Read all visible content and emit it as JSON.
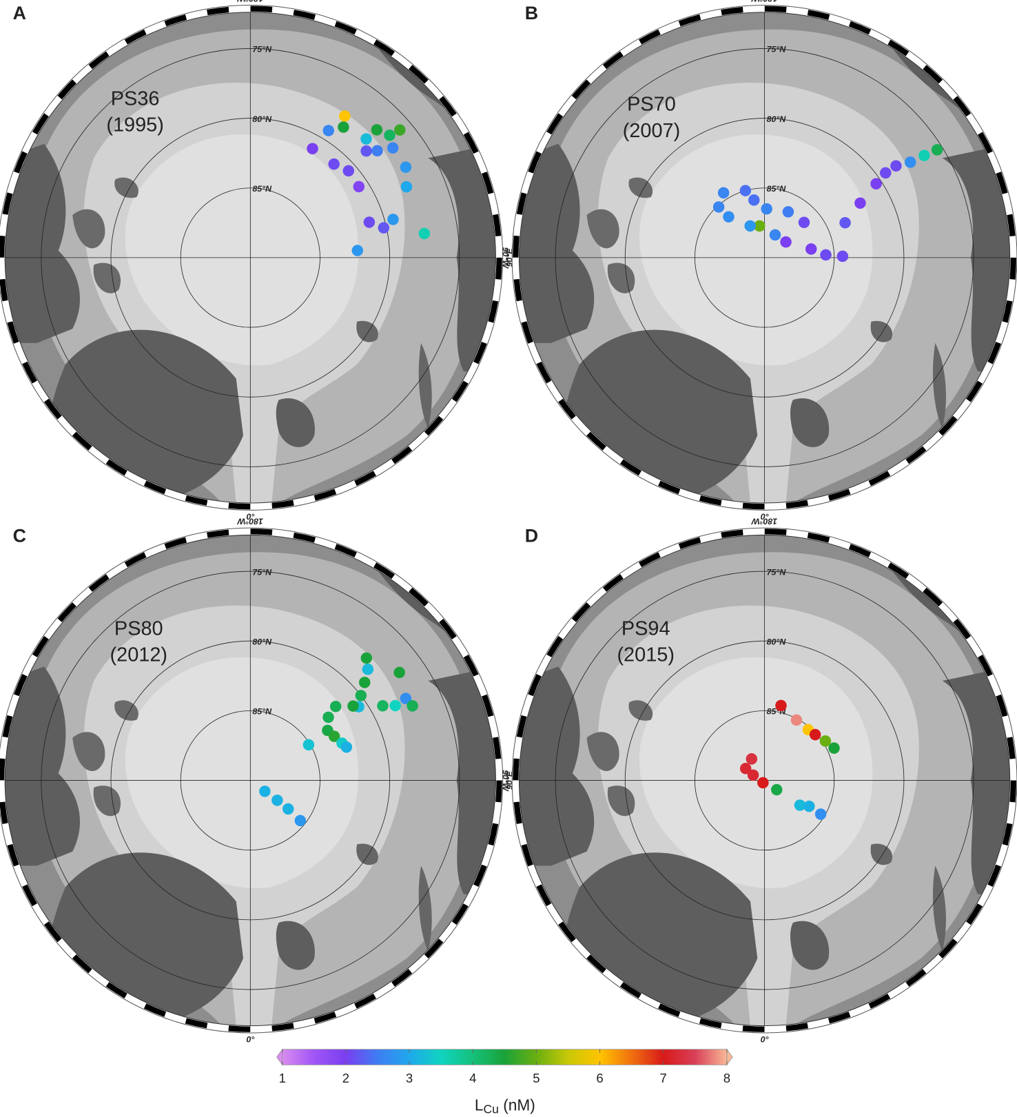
{
  "graticule": {
    "boundary_lat": 72.4,
    "lat_circles": [
      {
        "value": 75,
        "label": "75°N"
      },
      {
        "value": 80,
        "label": "80°N"
      },
      {
        "value": 85,
        "label": "85°N"
      }
    ],
    "meridians": [
      {
        "value": 180,
        "label": "180°W"
      },
      {
        "value": 90,
        "label": "90°E"
      },
      {
        "value": 0,
        "label": "0°"
      },
      {
        "value": -90,
        "label": "90°W"
      }
    ]
  },
  "panels": [
    {
      "letter": "A",
      "cruise": "PS36",
      "year": "(1995)",
      "lon": [
        146.3,
        144.5,
        148.4,
        150.3,
        138.2,
        131.5,
        123.2,
        135.3,
        130.5,
        131.3,
        135.7,
        132.6,
        130.1,
        127.6,
        120.2,
        114.4,
        106.6,
        102.6,
        105,
        97.9,
        93.8
      ],
      "lat": [
        77.8,
        78.5,
        79.3,
        81,
        81,
        80.6,
        80.7,
        77.1,
        75.9,
        76.7,
        78.1,
        78.7,
        78.1,
        77.1,
        77.1,
        77.7,
        81.1,
        80.2,
        79.4,
        77.4,
        82.3
      ],
      "value": [
        6.0,
        4.5,
        2.6,
        2.0,
        2.1,
        2.1,
        1.9,
        4.5,
        4.7,
        4.2,
        3.2,
        2.2,
        2.5,
        2.6,
        2.8,
        3.0,
        2.1,
        2.2,
        2.8,
        3.6,
        2.8
      ]
    },
    {
      "letter": "B",
      "cruise": "PS70",
      "year": "(2007)",
      "lon": [
        122,
        122.6,
        123.2,
        124.9,
        125,
        123.5,
        119.7,
        113.4,
        91,
        92.6,
        100.5,
        126.3,
        154.9,
        -171,
        -155.6,
        177.5,
        152.7,
        131.7,
        -169.6,
        -164.1,
        -147.7,
        -137.9,
        -138.7
      ],
      "lat": [
        75.4,
        76.4,
        77.5,
        78.5,
        79.4,
        80.4,
        82.1,
        83.7,
        84.4,
        85.6,
        86.6,
        88.1,
        88.2,
        87.7,
        87.5,
        86.5,
        86.3,
        86.2,
        85.8,
        85,
        84.5,
        85.1,
        86.1
      ],
      "value": [
        4.3,
        3.6,
        2.7,
        2.1,
        2.1,
        2.0,
        2.0,
        2.2,
        2.1,
        2.1,
        2.0,
        2.0,
        2.6,
        5.0,
        2.8,
        2.6,
        2.5,
        2.1,
        2.4,
        2.4,
        2.6,
        2.6,
        2.7
      ]
    },
    {
      "letter": "C",
      "cruise": "PS80",
      "year": "(2012)",
      "lon": [
        136.5,
        133.4,
        130.6,
        127.5,
        124.2,
        125.9,
        119.4,
        117.3,
        117.8,
        114.7,
        125.9,
        130.9,
        129,
        122.9,
        117.7,
        112.1,
        109.1,
        121.4,
        53.1,
        53.6,
        53,
        51.2
      ],
      "lat": [
        77.9,
        78.4,
        79.2,
        80,
        80.6,
        76.8,
        79.1,
        78.3,
        77.4,
        77.2,
        80.9,
        81.9,
        82.8,
        83.4,
        83.2,
        82.9,
        82.7,
        85.1,
        88.7,
        87.6,
        86.6,
        85.4
      ],
      "value": [
        4.5,
        3.2,
        4.5,
        4.3,
        3.2,
        4.5,
        4.2,
        3.5,
        2.7,
        4.3,
        4.5,
        4.3,
        4.3,
        4.4,
        4.6,
        3.4,
        3.1,
        3.3,
        3.1,
        3.1,
        3.1,
        2.8
      ]
    },
    {
      "letter": "D",
      "cruise": "PS94",
      "year": "(2015)",
      "lon": [
        167.6,
        152.1,
        139.3,
        132.1,
        122.9,
        114.9,
        -149,
        -122.2,
        -115,
        -33.7,
        52.6,
        55,
        59.9,
        59
      ],
      "lat": [
        84.5,
        85.1,
        85.2,
        85.1,
        84.8,
        84.5,
        88.2,
        88.4,
        89.1,
        89.8,
        88.9,
        86.9,
        86.3,
        85.3
      ],
      "value": [
        7.0,
        7.8,
        6.0,
        7.0,
        5.0,
        4.5,
        7.3,
        7.2,
        7.2,
        7.0,
        4.4,
        3.2,
        3.1,
        2.7
      ]
    }
  ],
  "colorbar": {
    "lim": [
      1,
      8
    ],
    "ticks": [
      1,
      2,
      3,
      4,
      5,
      6,
      7,
      8
    ],
    "colors": [
      "#d88cf0",
      "#a055f5",
      "#7a3ff0",
      "#3f7df2",
      "#1fa8ec",
      "#10d4c0",
      "#15c07a",
      "#1aa23a",
      "#6aaf10",
      "#c8c808",
      "#ffc400",
      "#f07010",
      "#d81a1a",
      "#d84058",
      "#f8b898"
    ],
    "label_main": "L",
    "label_sub": "Cu",
    "label_unit": " (nM)"
  }
}
